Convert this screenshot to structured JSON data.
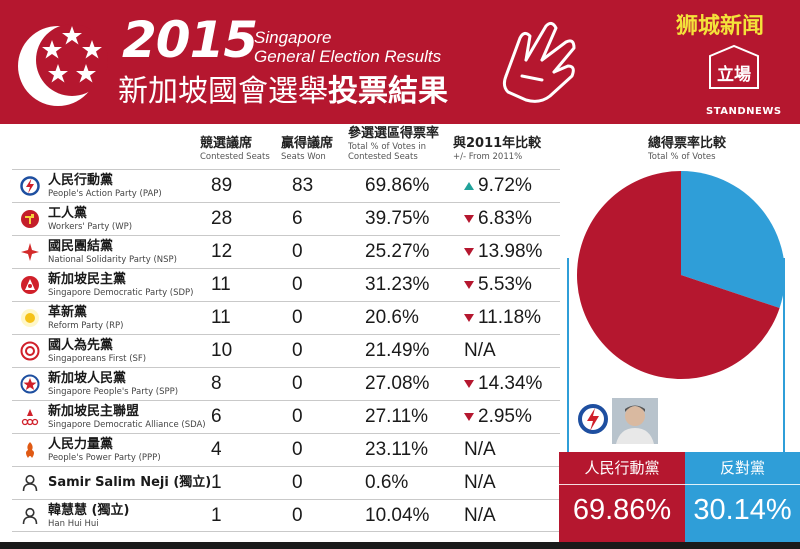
{
  "header": {
    "year": "2015",
    "subtitle_line1": "Singapore",
    "subtitle_line2": "General Election Results",
    "title_zh_regular": "新加坡國會選舉",
    "title_zh_bold": "投票結果",
    "watermark": "狮城新闻",
    "publisher_logo_text": "立場",
    "publisher_label": "STANDNEWS"
  },
  "columns": {
    "contested_zh": "競選議席",
    "contested_en": "Contested Seats",
    "won_zh": "贏得議席",
    "won_en": "Seats Won",
    "pct_zh": "參選選區得票率",
    "pct_en1": "Total % of Votes in",
    "pct_en2": "Contested Seats",
    "chg_zh": "與2011年比較",
    "chg_en": "+/- From 2011%",
    "total_zh": "總得票率比較",
    "total_en": "Total % of Votes"
  },
  "rows": [
    {
      "zh": "人民行動黨",
      "en": "People's Action Party (PAP)",
      "contested": "89",
      "won": "83",
      "pct": "69.86%",
      "change": "9.72%",
      "dir": "up",
      "icon": "pap-lightning-icon"
    },
    {
      "zh": "工人黨",
      "en": "Workers' Party (WP)",
      "contested": "28",
      "won": "6",
      "pct": "39.75%",
      "change": "6.83%",
      "dir": "down",
      "icon": "wp-hammer-icon"
    },
    {
      "zh": "國民團結黨",
      "en": "National Solidarity Party (NSP)",
      "contested": "12",
      "won": "0",
      "pct": "25.27%",
      "change": "13.98%",
      "dir": "down",
      "icon": "nsp-star-icon"
    },
    {
      "zh": "新加坡民主黨",
      "en": "Singapore Democratic Party (SDP)",
      "contested": "11",
      "won": "0",
      "pct": "31.23%",
      "change": "5.53%",
      "dir": "down",
      "icon": "sdp-icon"
    },
    {
      "zh": "革新黨",
      "en": "Reform Party (RP)",
      "contested": "11",
      "won": "0",
      "pct": "20.6%",
      "change": "11.18%",
      "dir": "down",
      "icon": "rp-sun-icon"
    },
    {
      "zh": "國人為先黨",
      "en": "Singaporeans First (SF)",
      "contested": "10",
      "won": "0",
      "pct": "21.49%",
      "change": "N/A",
      "dir": "none",
      "icon": "sf-icon"
    },
    {
      "zh": "新加坡人民黨",
      "en": "Singapore People's Party (SPP)",
      "contested": "8",
      "won": "0",
      "pct": "27.08%",
      "change": "14.34%",
      "dir": "down",
      "icon": "spp-icon"
    },
    {
      "zh": "新加坡民主聯盟",
      "en": "Singapore Democratic Alliance (SDA)",
      "contested": "6",
      "won": "0",
      "pct": "27.11%",
      "change": "2.95%",
      "dir": "down",
      "icon": "sda-icon"
    },
    {
      "zh": "人民力量黨",
      "en": "People's Power Party (PPP)",
      "contested": "4",
      "won": "0",
      "pct": "23.11%",
      "change": "N/A",
      "dir": "none",
      "icon": "ppp-icon"
    },
    {
      "zh": "Samir Salim Neji (獨立)",
      "en": "",
      "contested": "1",
      "won": "0",
      "pct": "0.6%",
      "change": "N/A",
      "dir": "none",
      "icon": "person-icon"
    },
    {
      "zh": "韓慧慧 (獨立)",
      "en": "Han Hui Hui",
      "contested": "1",
      "won": "0",
      "pct": "10.04%",
      "change": "N/A",
      "dir": "none",
      "icon": "person-icon"
    }
  ],
  "totals": {
    "pap_label": "人民行動黨",
    "pap_value": "69.86%",
    "opp_label": "反對黨",
    "opp_value": "30.14%"
  },
  "colors": {
    "brand_red": "#b5172f",
    "opposition_blue": "#2f9ed8",
    "up_teal": "#20a29a"
  },
  "chart_data": {
    "type": "pie",
    "title": "總得票率比較",
    "subtitle": "Total % of Votes",
    "categories": [
      "人民行動黨",
      "反對黨"
    ],
    "values": [
      69.86,
      30.14
    ],
    "colors": [
      "#b5172f",
      "#2f9ed8"
    ]
  }
}
